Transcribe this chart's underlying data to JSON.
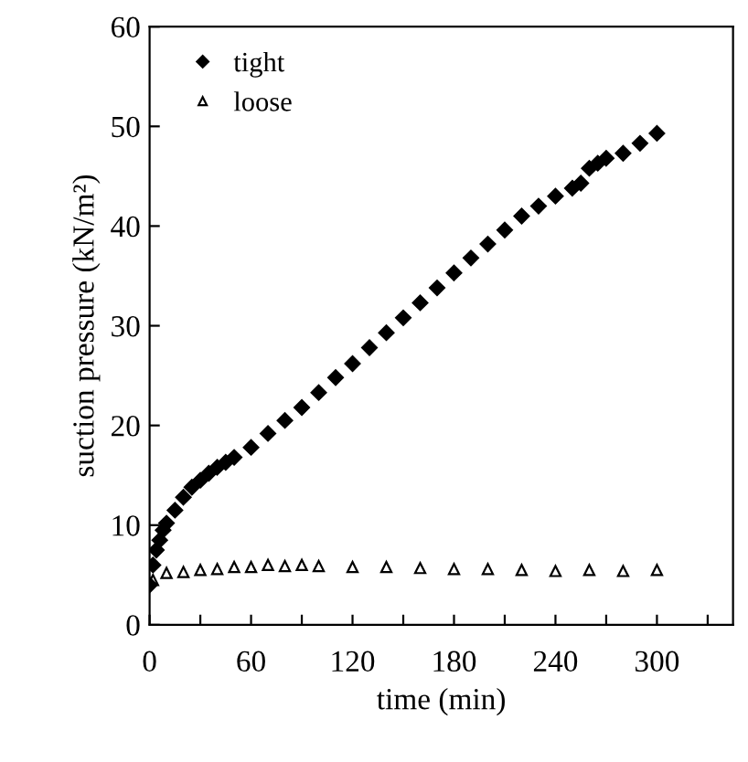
{
  "chart_data": {
    "type": "scatter",
    "xlabel": "time (min)",
    "ylabel": "suction pressure (kN/m²)",
    "xlim": [
      0,
      345
    ],
    "xticks": [
      0,
      {
        "value": 30,
        "label": null
      },
      60,
      {
        "value": 90,
        "label": null
      },
      120,
      {
        "value": 150,
        "label": null
      },
      180,
      {
        "value": 210,
        "label": null
      },
      240,
      {
        "value": 270,
        "label": null
      },
      300,
      {
        "value": 330,
        "label": null
      }
    ],
    "ylim": [
      0,
      60
    ],
    "yticks": [
      0,
      10,
      20,
      30,
      40,
      50,
      60
    ],
    "grid": false,
    "legend": "top left",
    "series": [
      {
        "name": "tight",
        "color": "#000000",
        "marker": "diamond",
        "x": [
          0,
          2,
          4,
          6,
          8,
          10,
          15,
          20,
          25,
          30,
          35,
          40,
          45,
          50,
          60,
          70,
          80,
          90,
          100,
          110,
          120,
          130,
          140,
          150,
          160,
          170,
          180,
          190,
          200,
          210,
          220,
          230,
          240,
          250,
          255,
          260,
          265,
          270,
          280,
          290,
          300
        ],
        "values": [
          4,
          6,
          7.5,
          8.5,
          9.5,
          10.2,
          11.5,
          12.8,
          13.8,
          14.5,
          15.2,
          15.8,
          16.3,
          16.8,
          17.8,
          19.2,
          20.5,
          21.8,
          23.3,
          24.8,
          26.2,
          27.8,
          29.3,
          30.8,
          32.3,
          33.8,
          35.3,
          36.8,
          38.2,
          39.6,
          41,
          42,
          43,
          43.8,
          44.3,
          45.8,
          46.3,
          46.8,
          47.3,
          48.3,
          49.3
        ]
      },
      {
        "name": "loose",
        "color": "#000000",
        "marker": "triangle",
        "x": [
          2,
          10,
          20,
          30,
          40,
          50,
          60,
          70,
          80,
          90,
          100,
          120,
          140,
          160,
          180,
          200,
          220,
          240,
          260,
          280,
          300
        ],
        "values": [
          4.5,
          5.2,
          5.3,
          5.5,
          5.6,
          5.8,
          5.8,
          6,
          5.9,
          6,
          5.9,
          5.8,
          5.8,
          5.7,
          5.6,
          5.6,
          5.5,
          5.4,
          5.5,
          5.4,
          5.5
        ]
      }
    ]
  }
}
